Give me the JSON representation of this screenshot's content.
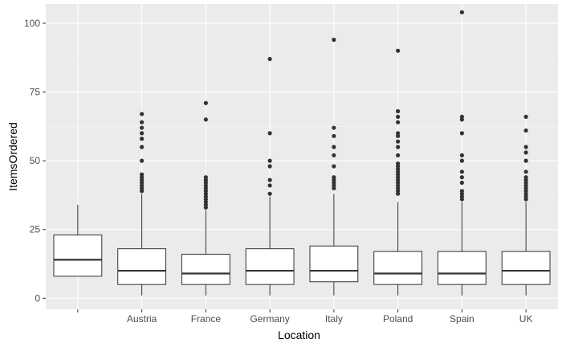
{
  "chart_data": {
    "type": "boxplot",
    "title": "",
    "xlabel": "Location",
    "ylabel": "ItemsOrdered",
    "ylim": [
      -4,
      107
    ],
    "y_ticks": [
      0,
      25,
      50,
      75,
      100
    ],
    "grid": true,
    "legend": "none",
    "colors": {
      "panel_background": "#ebebeb",
      "grid_major": "#ffffff",
      "grid_minor": "#f5f5f5",
      "box_fill": "#ffffff",
      "box_stroke": "#333333",
      "outlier": "#333333",
      "tick_label": "#4d4d4d",
      "axis_title": "#000000"
    },
    "categories": [
      "",
      "Austria",
      "France",
      "Germany",
      "Italy",
      "Poland",
      "Spain",
      "UK"
    ],
    "boxes": [
      {
        "category": "",
        "min": 8,
        "q1": 8,
        "median": 14,
        "q3": 23,
        "max": 34,
        "outliers": []
      },
      {
        "category": "Austria",
        "min": 1,
        "q1": 5,
        "median": 10,
        "q3": 18,
        "max": 38,
        "outliers": [
          39,
          40,
          41,
          42,
          43,
          44,
          45,
          50,
          55,
          58,
          60,
          62,
          64,
          67
        ]
      },
      {
        "category": "France",
        "min": 1,
        "q1": 5,
        "median": 9,
        "q3": 16,
        "max": 32,
        "outliers": [
          33,
          34,
          35,
          36,
          37,
          38,
          39,
          40,
          41,
          42,
          43,
          44,
          65,
          71
        ]
      },
      {
        "category": "Germany",
        "min": 1,
        "q1": 5,
        "median": 10,
        "q3": 18,
        "max": 37,
        "outliers": [
          38,
          41,
          43,
          48,
          50,
          60,
          87
        ]
      },
      {
        "category": "Italy",
        "min": 1,
        "q1": 6,
        "median": 10,
        "q3": 19,
        "max": 38,
        "outliers": [
          40,
          41,
          42,
          43,
          44,
          48,
          52,
          55,
          59,
          62,
          94
        ]
      },
      {
        "category": "Poland",
        "min": 1,
        "q1": 5,
        "median": 9,
        "q3": 17,
        "max": 35,
        "outliers": [
          38,
          39,
          40,
          41,
          42,
          43,
          44,
          45,
          46,
          47,
          48,
          49,
          52,
          55,
          57,
          59,
          60,
          64,
          66,
          68,
          90
        ]
      },
      {
        "category": "Spain",
        "min": 1,
        "q1": 5,
        "median": 9,
        "q3": 17,
        "max": 35,
        "outliers": [
          36,
          37,
          38,
          39,
          42,
          44,
          46,
          50,
          52,
          60,
          65,
          66,
          104
        ]
      },
      {
        "category": "UK",
        "min": 1,
        "q1": 5,
        "median": 10,
        "q3": 17,
        "max": 35,
        "outliers": [
          36,
          37,
          38,
          39,
          40,
          41,
          42,
          43,
          44,
          46,
          50,
          53,
          55,
          61,
          66
        ]
      }
    ]
  }
}
